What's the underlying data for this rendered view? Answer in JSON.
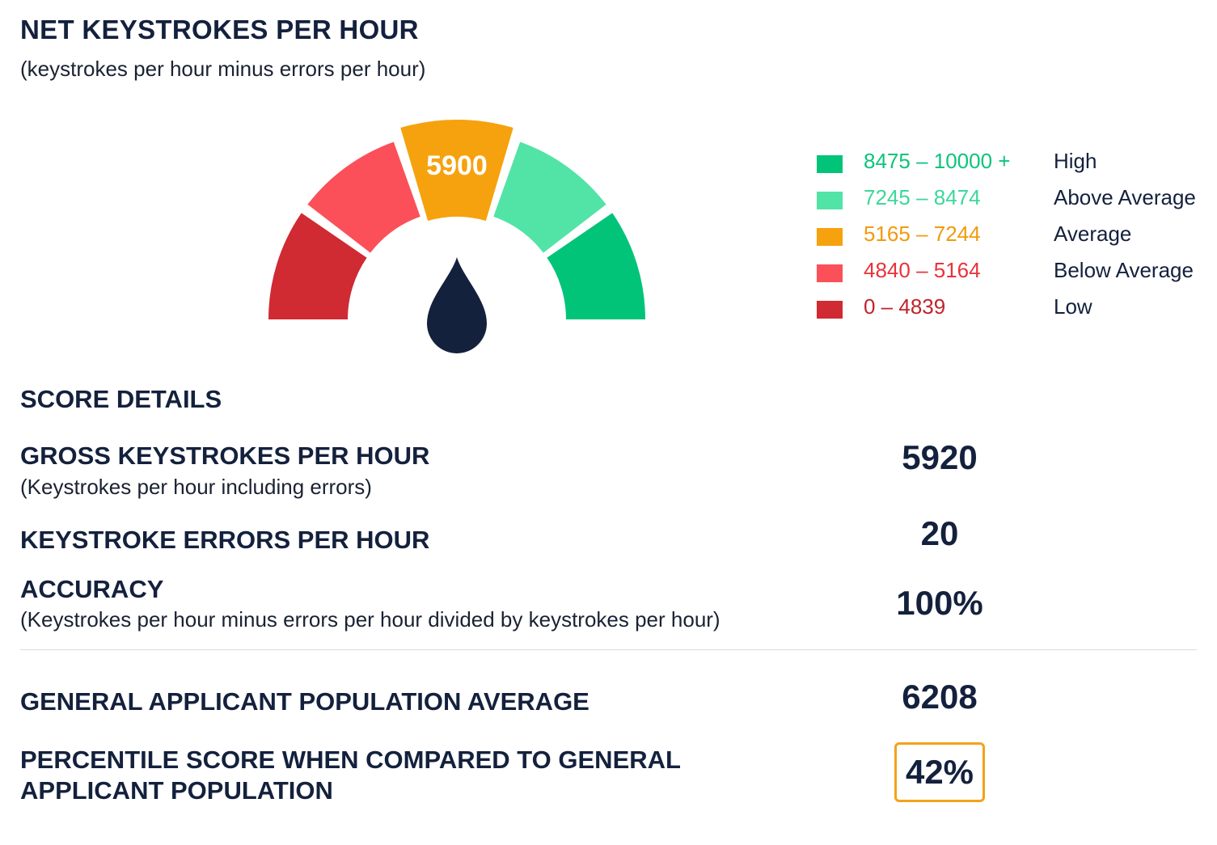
{
  "header": {
    "title": "NET KEYSTROKES PER HOUR",
    "subtitle": "(keystrokes per hour minus errors per hour)"
  },
  "chart_data": {
    "type": "gauge",
    "value": 5900,
    "value_label": "5900",
    "segments": [
      {
        "range": "0 – 4839",
        "label": "Low",
        "color": "#d02a33"
      },
      {
        "range": "4840 – 5164",
        "label": "Below Average",
        "color": "#fb5059"
      },
      {
        "range": "5165 – 7244",
        "label": "Average",
        "color": "#f6a20e"
      },
      {
        "range": "7245 – 8474",
        "label": "Above Average",
        "color": "#52e3a6"
      },
      {
        "range": "8475 – 10000 +",
        "label": "High",
        "color": "#02c479"
      }
    ],
    "active_segment": 2,
    "needle_color": "#14213d",
    "legend_text_colors": [
      "#c0232c",
      "#e8323c",
      "#f29a0c",
      "#3dd79a",
      "#0cc47c"
    ]
  },
  "details": {
    "section_title": "SCORE DETAILS",
    "gross": {
      "label": "GROSS KEYSTROKES PER HOUR",
      "note": "(Keystrokes per hour including errors)",
      "value": "5920"
    },
    "errors": {
      "label": "KEYSTROKE ERRORS PER HOUR",
      "value": "20"
    },
    "accuracy": {
      "label": "ACCURACY",
      "note": "(Keystrokes per hour minus errors per hour divided by keystrokes per hour)",
      "value": "100%"
    },
    "population_average": {
      "label": "GENERAL APPLICANT POPULATION AVERAGE",
      "value": "6208"
    },
    "percentile": {
      "label_line1": "PERCENTILE SCORE WHEN COMPARED TO GENERAL",
      "label_line2": "APPLICANT POPULATION",
      "value": "42%",
      "highlight_color": "#f4a21a"
    }
  }
}
